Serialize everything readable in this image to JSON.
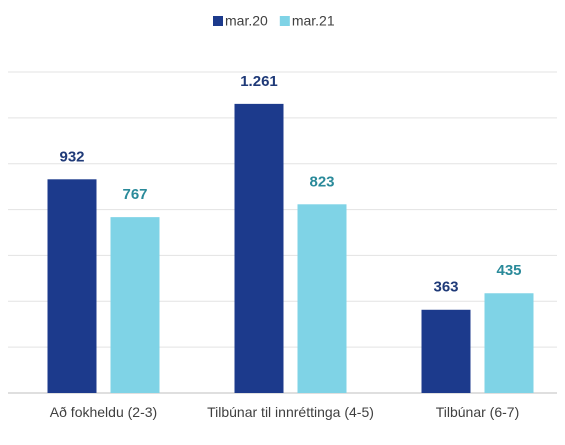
{
  "chart_data": {
    "type": "bar",
    "categories": [
      "Að fokheldu (2-3)",
      "Tilbúnar til innréttinga (4-5)",
      "Tilbúnar (6-7)"
    ],
    "series": [
      {
        "name": "mar.20",
        "color": "#1c3a8c",
        "values": [
          932,
          1261,
          363
        ],
        "value_labels": [
          "932",
          "1.261",
          "363"
        ]
      },
      {
        "name": "mar.21",
        "color": "#7fd3e6",
        "values": [
          767,
          823,
          435
        ]
      }
    ],
    "ylim": [
      0,
      1400
    ],
    "yticks": [
      0,
      200,
      400,
      600,
      800,
      1000,
      1200,
      1400
    ],
    "grid": true,
    "legend": "top"
  }
}
